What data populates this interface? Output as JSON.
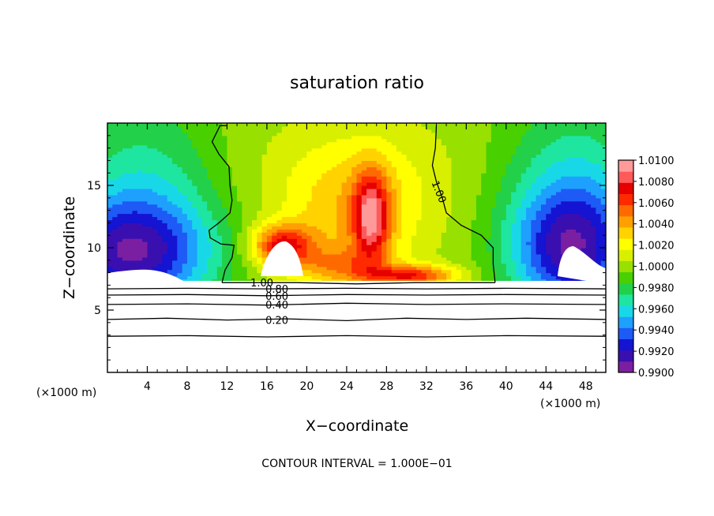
{
  "chart_data": {
    "type": "heatmap",
    "title": "saturation ratio",
    "xlabel": "X−coordinate",
    "ylabel": "Z−coordinate",
    "x_unit": "(×1000 m)",
    "z_unit": "(×1000 m)",
    "x_range": [
      0,
      50
    ],
    "z_range": [
      0,
      20
    ],
    "x_ticks": [
      "4",
      "8",
      "12",
      "16",
      "20",
      "24",
      "28",
      "32",
      "36",
      "40",
      "44",
      "48"
    ],
    "x_tick_values": [
      4,
      8,
      12,
      16,
      20,
      24,
      28,
      32,
      36,
      40,
      44,
      48
    ],
    "z_ticks": [
      "5",
      "10",
      "15"
    ],
    "z_tick_values": [
      5,
      10,
      15
    ],
    "colorbar": {
      "labels": [
        "0.9900",
        "0.9920",
        "0.9940",
        "0.9960",
        "0.9980",
        "1.0000",
        "1.0020",
        "1.0040",
        "1.0060",
        "1.0080",
        "1.0100"
      ],
      "values": [
        0.99,
        0.992,
        0.994,
        0.996,
        0.998,
        1.0,
        1.002,
        1.004,
        1.006,
        1.008,
        1.01
      ],
      "colors": [
        "#7b1fa2",
        "#3a0fb0",
        "#1414d2",
        "#1e5af5",
        "#1ea0ff",
        "#18d8e8",
        "#1ee6a0",
        "#22d04a",
        "#48d000",
        "#98e000",
        "#d8f000",
        "#ffff00",
        "#ffd200",
        "#ffa000",
        "#ff6a00",
        "#ff2a00",
        "#e60000",
        "#ff5a5a",
        "#ff9a9a"
      ]
    },
    "color_field": {
      "x_samples": [
        0,
        2,
        4,
        6,
        8,
        10,
        12,
        14,
        16,
        18,
        20,
        22,
        24,
        26,
        28,
        30,
        32,
        34,
        36,
        38,
        40,
        42,
        44,
        46,
        48,
        50
      ],
      "z_samples": [
        8,
        9,
        10,
        11,
        12,
        13,
        14,
        15,
        16,
        17,
        18,
        19,
        20
      ],
      "base_value": 1.0,
      "blobs": [
        {
          "x": 26.5,
          "z": 12.5,
          "sx": 1.3,
          "sz": 2.6,
          "amp": 0.0068
        },
        {
          "x": 24.5,
          "z": 12.0,
          "sx": 4.8,
          "sz": 4.2,
          "amp": 0.0028
        },
        {
          "x": 25.0,
          "z": 15.5,
          "sx": 8.5,
          "sz": 3.5,
          "amp": 0.0012
        },
        {
          "x": 17.5,
          "z": 10.2,
          "sx": 2.2,
          "sz": 1.2,
          "amp": 0.0068
        },
        {
          "x": 30.5,
          "z": 7.8,
          "sx": 3.2,
          "sz": 0.6,
          "amp": 0.0062
        },
        {
          "x": 23.0,
          "z": 8.6,
          "sx": 3.0,
          "sz": 1.0,
          "amp": 0.0028
        },
        {
          "x": 2.0,
          "z": 9.5,
          "sx": 6.0,
          "sz": 3.0,
          "amp": -0.0065
        },
        {
          "x": 46.5,
          "z": 9.8,
          "sx": 4.2,
          "sz": 3.5,
          "amp": -0.0065
        },
        {
          "x": 3.5,
          "z": 13.5,
          "sx": 5.5,
          "sz": 6.0,
          "amp": -0.0035
        },
        {
          "x": 47.0,
          "z": 14.0,
          "sx": 5.5,
          "sz": 6.0,
          "amp": -0.0035
        }
      ]
    },
    "contour_lines": [
      {
        "label": "1.00",
        "points": [
          [
            11.5,
            7.2
          ],
          [
            11.8,
            8.2
          ],
          [
            12.5,
            9.2
          ],
          [
            12.7,
            10.2
          ],
          [
            11.4,
            10.3
          ],
          [
            10.3,
            10.8
          ],
          [
            10.2,
            11.4
          ],
          [
            11.2,
            12.0
          ],
          [
            12.3,
            12.8
          ],
          [
            12.5,
            13.8
          ],
          [
            12.3,
            15.0
          ],
          [
            12.2,
            16.5
          ],
          [
            11.2,
            17.5
          ],
          [
            10.5,
            18.5
          ],
          [
            11.3,
            19.8
          ],
          [
            12.0,
            19.8
          ]
        ]
      },
      {
        "label": "1.00",
        "points": [
          [
            33.0,
            19.8
          ],
          [
            32.9,
            18.0
          ],
          [
            32.6,
            16.6
          ],
          [
            33.0,
            15.3
          ],
          [
            33.6,
            14.0
          ],
          [
            34.0,
            12.8
          ],
          [
            35.5,
            11.8
          ],
          [
            37.5,
            11.0
          ],
          [
            38.7,
            10.0
          ],
          [
            38.7,
            8.7
          ],
          [
            38.9,
            7.2
          ]
        ]
      },
      {
        "label": "1.00",
        "points": [
          [
            11.5,
            7.2
          ],
          [
            19.0,
            7.2
          ],
          [
            25.0,
            7.1
          ],
          [
            31.0,
            7.2
          ],
          [
            38.9,
            7.2
          ]
        ]
      },
      {
        "label": "0.80",
        "points": [
          [
            0,
            6.7
          ],
          [
            8,
            6.75
          ],
          [
            16,
            6.7
          ],
          [
            24,
            6.75
          ],
          [
            32,
            6.7
          ],
          [
            40,
            6.75
          ],
          [
            50,
            6.7
          ]
        ]
      },
      {
        "label": "0.60",
        "points": [
          [
            0,
            6.2
          ],
          [
            8,
            6.25
          ],
          [
            16,
            6.15
          ],
          [
            24,
            6.25
          ],
          [
            32,
            6.2
          ],
          [
            40,
            6.25
          ],
          [
            50,
            6.2
          ]
        ]
      },
      {
        "label": "0.40",
        "points": [
          [
            0,
            5.45
          ],
          [
            8,
            5.5
          ],
          [
            16,
            5.4
          ],
          [
            24,
            5.55
          ],
          [
            32,
            5.45
          ],
          [
            40,
            5.5
          ],
          [
            50,
            5.45
          ]
        ]
      },
      {
        "label": "0.20",
        "points": [
          [
            0,
            4.25
          ],
          [
            6,
            4.35
          ],
          [
            12,
            4.2
          ],
          [
            18,
            4.3
          ],
          [
            24,
            4.15
          ],
          [
            30,
            4.35
          ],
          [
            36,
            4.25
          ],
          [
            42,
            4.35
          ],
          [
            50,
            4.25
          ]
        ]
      },
      {
        "label": "",
        "points": [
          [
            0,
            2.9
          ],
          [
            8,
            2.95
          ],
          [
            16,
            2.85
          ],
          [
            24,
            2.95
          ],
          [
            32,
            2.85
          ],
          [
            40,
            2.95
          ],
          [
            50,
            2.9
          ]
        ]
      }
    ],
    "contour_label_positions": [
      {
        "label": "1.00",
        "x": 15.5,
        "z": 7.2
      },
      {
        "label": "0.80",
        "x": 17.0,
        "z": 6.7
      },
      {
        "label": "0.60",
        "x": 17.0,
        "z": 6.15
      },
      {
        "label": "0.40",
        "x": 17.0,
        "z": 5.45
      },
      {
        "label": "0.20",
        "x": 17.0,
        "z": 4.2
      },
      {
        "label": "1.00",
        "x": 33.3,
        "z": 14.5
      }
    ],
    "interval_text": "CONTOUR INTERVAL = 1.000E−01",
    "grid": false,
    "legend": "right"
  }
}
